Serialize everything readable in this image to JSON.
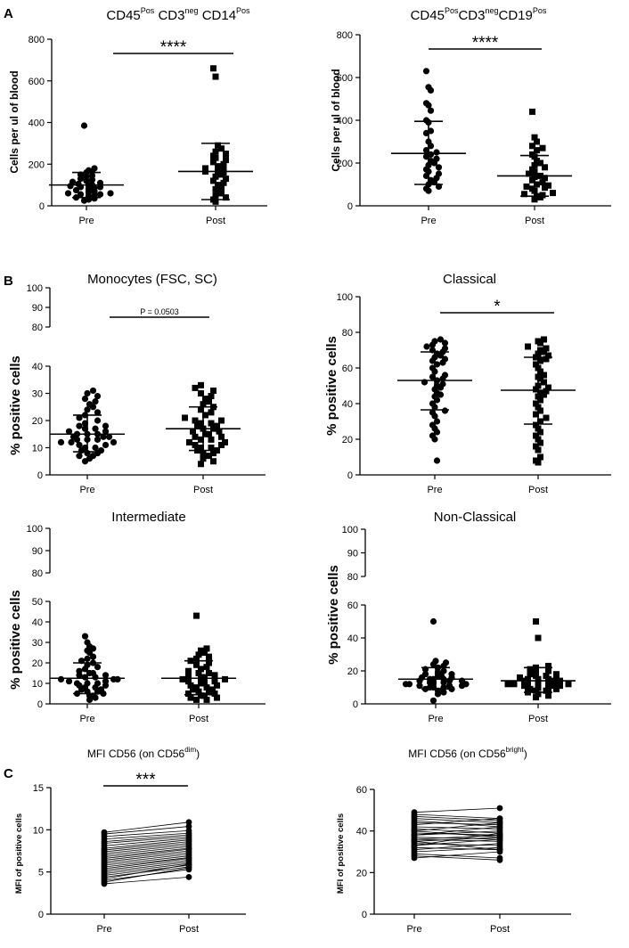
{
  "panel_labels": [
    "A",
    "B",
    "C"
  ],
  "chart_data": [
    {
      "id": "a1",
      "type": "scatter",
      "title_main": "CD45",
      "title_sups": [
        "Pos",
        "neg",
        "Pos"
      ],
      "title_parts": [
        "CD45",
        "CD3",
        "CD14"
      ],
      "ylabel": "Cells per ul of blood",
      "ylim": [
        0,
        800
      ],
      "yticks": [
        0,
        200,
        400,
        600,
        800
      ],
      "categories": [
        "Pre",
        "Post"
      ],
      "significance": "****",
      "series": [
        {
          "name": "Pre",
          "marker": "circle",
          "mean": 100,
          "sd_low": 40,
          "sd_high": 160,
          "values": [
            385,
            180,
            170,
            165,
            160,
            150,
            145,
            140,
            130,
            125,
            120,
            115,
            110,
            105,
            100,
            100,
            95,
            90,
            90,
            85,
            80,
            75,
            70,
            65,
            60,
            60,
            55,
            55,
            50,
            45,
            40,
            35,
            30,
            25
          ]
        },
        {
          "name": "Post",
          "marker": "square",
          "mean": 165,
          "sd_low": 30,
          "sd_high": 300,
          "values": [
            660,
            620,
            290,
            275,
            260,
            250,
            240,
            230,
            220,
            210,
            200,
            190,
            180,
            175,
            170,
            165,
            160,
            155,
            150,
            140,
            130,
            120,
            110,
            100,
            90,
            80,
            70,
            60,
            50,
            40,
            30,
            20
          ]
        }
      ]
    },
    {
      "id": "a2",
      "type": "scatter",
      "title_parts": [
        "CD45",
        "CD3",
        "CD19"
      ],
      "title_sups": [
        "Pos",
        "neg",
        "Pos"
      ],
      "ylabel": "Cells per ul of blood",
      "ylim": [
        0,
        800
      ],
      "yticks": [
        0,
        200,
        400,
        600,
        800
      ],
      "categories": [
        "Pre",
        "Post"
      ],
      "significance": "****",
      "series": [
        {
          "name": "Pre",
          "marker": "circle",
          "mean": 245,
          "sd_low": 100,
          "sd_high": 395,
          "values": [
            630,
            555,
            540,
            480,
            470,
            445,
            400,
            390,
            350,
            340,
            300,
            280,
            260,
            250,
            240,
            230,
            220,
            210,
            200,
            190,
            180,
            170,
            160,
            150,
            140,
            130,
            120,
            110,
            100,
            90,
            80,
            70
          ]
        },
        {
          "name": "Post",
          "marker": "square",
          "mean": 140,
          "sd_low": 45,
          "sd_high": 235,
          "values": [
            440,
            320,
            300,
            280,
            270,
            260,
            240,
            230,
            210,
            200,
            190,
            180,
            170,
            160,
            150,
            140,
            135,
            130,
            120,
            110,
            100,
            95,
            90,
            85,
            80,
            70,
            60,
            55,
            50,
            45,
            40,
            30
          ]
        }
      ]
    },
    {
      "id": "b1",
      "type": "scatter",
      "title": "Monocytes (FSC, SC)",
      "ylabel": "% positive cells",
      "ylim": [
        0,
        100
      ],
      "yticks_low": [
        0,
        10,
        20,
        30,
        40
      ],
      "yticks_high": [
        80,
        90,
        100
      ],
      "categories": [
        "Pre",
        "Post"
      ],
      "significance": "P = 0.0503",
      "series": [
        {
          "name": "Pre",
          "marker": "circle",
          "mean": 15,
          "sd_low": 8.5,
          "sd_high": 22,
          "values": [
            31,
            30,
            29,
            28,
            27,
            26,
            25,
            24,
            23,
            22,
            21,
            20,
            19,
            18,
            18,
            17,
            17,
            16,
            16,
            15,
            15,
            15,
            14,
            14,
            14,
            13,
            13,
            13,
            12,
            12,
            12,
            11,
            11,
            10,
            10,
            9,
            9,
            8,
            8,
            7,
            7,
            6,
            5
          ]
        },
        {
          "name": "Post",
          "marker": "square",
          "mean": 17,
          "sd_low": 9,
          "sd_high": 25,
          "values": [
            33,
            32,
            31,
            30,
            29,
            28,
            27,
            26,
            25,
            24,
            23,
            22,
            21,
            20,
            20,
            19,
            19,
            18,
            18,
            17,
            17,
            16,
            16,
            15,
            15,
            14,
            14,
            13,
            13,
            12,
            12,
            11,
            11,
            10,
            10,
            9,
            9,
            8,
            8,
            7,
            6,
            5,
            4
          ]
        }
      ]
    },
    {
      "id": "b2",
      "type": "scatter",
      "title": "Classical",
      "ylabel": "% positive cells",
      "ylim": [
        0,
        100
      ],
      "yticks": [
        0,
        20,
        40,
        60,
        80,
        100
      ],
      "categories": [
        "Pre",
        "Post"
      ],
      "significance": "*",
      "series": [
        {
          "name": "Pre",
          "marker": "circle",
          "mean": 53,
          "sd_low": 36.5,
          "sd_high": 69,
          "values": [
            76,
            75,
            74,
            73,
            72,
            71,
            70,
            69,
            68,
            67,
            66,
            65,
            64,
            63,
            62,
            60,
            58,
            56,
            55,
            54,
            53,
            52,
            51,
            50,
            49,
            48,
            46,
            45,
            44,
            42,
            40,
            38,
            36,
            35,
            33,
            30,
            28,
            26,
            24,
            22,
            20,
            8
          ]
        },
        {
          "name": "Post",
          "marker": "square",
          "mean": 47.5,
          "sd_low": 28.5,
          "sd_high": 66,
          "values": [
            76,
            75,
            74,
            72,
            71,
            70,
            69,
            68,
            67,
            66,
            65,
            64,
            62,
            60,
            58,
            56,
            55,
            54,
            52,
            50,
            49,
            48,
            47,
            46,
            45,
            44,
            42,
            40,
            38,
            36,
            34,
            32,
            30,
            28,
            26,
            24,
            22,
            20,
            18,
            16,
            14,
            10,
            8,
            7
          ]
        }
      ]
    },
    {
      "id": "b3",
      "type": "scatter",
      "title": "Intermediate",
      "ylabel": "% positive cells",
      "ylim": [
        0,
        100
      ],
      "yticks_low": [
        0,
        10,
        20,
        30,
        40,
        50
      ],
      "yticks_high": [
        80,
        90,
        100
      ],
      "categories": [
        "Pre",
        "Post"
      ],
      "significance": "",
      "series": [
        {
          "name": "Pre",
          "marker": "circle",
          "mean": 12.5,
          "sd_low": 5,
          "sd_high": 20,
          "values": [
            33,
            30,
            28,
            27,
            26,
            25,
            23,
            22,
            21,
            20,
            19,
            18,
            17,
            16,
            15,
            15,
            14,
            14,
            13,
            13,
            12,
            12,
            12,
            11,
            11,
            10,
            10,
            10,
            9,
            9,
            8,
            8,
            7,
            7,
            6,
            6,
            5,
            5,
            4,
            4,
            3,
            2
          ]
        },
        {
          "name": "Post",
          "marker": "square",
          "mean": 12.5,
          "sd_low": 4.5,
          "sd_high": 21,
          "values": [
            43,
            27,
            26,
            25,
            24,
            23,
            22,
            21,
            20,
            19,
            18,
            17,
            16,
            15,
            15,
            14,
            14,
            13,
            13,
            12,
            12,
            11,
            11,
            10,
            10,
            9,
            9,
            8,
            8,
            7,
            7,
            6,
            6,
            5,
            5,
            4,
            4,
            3,
            3,
            2,
            2
          ]
        }
      ]
    },
    {
      "id": "b4",
      "type": "scatter",
      "title": "Non-Classical",
      "ylabel": "% positive cells",
      "ylim": [
        0,
        100
      ],
      "yticks_low": [
        0,
        20,
        40,
        60
      ],
      "yticks_high": [
        80,
        90,
        100
      ],
      "categories": [
        "Pre",
        "Post"
      ],
      "significance": "",
      "series": [
        {
          "name": "Pre",
          "marker": "circle",
          "mean": 15,
          "sd_low": 9,
          "sd_high": 22,
          "values": [
            50,
            26,
            25,
            24,
            23,
            22,
            21,
            20,
            19,
            18,
            18,
            17,
            17,
            16,
            16,
            15,
            15,
            15,
            14,
            14,
            14,
            13,
            13,
            13,
            12,
            12,
            12,
            11,
            11,
            11,
            10,
            10,
            10,
            9,
            9,
            8,
            8,
            7,
            6,
            2
          ]
        },
        {
          "name": "Post",
          "marker": "square",
          "mean": 14,
          "sd_low": 7,
          "sd_high": 22,
          "values": [
            50,
            40,
            23,
            22,
            21,
            20,
            19,
            18,
            18,
            17,
            17,
            16,
            16,
            15,
            15,
            15,
            14,
            14,
            14,
            13,
            13,
            13,
            12,
            12,
            12,
            11,
            11,
            11,
            10,
            10,
            10,
            9,
            9,
            8,
            8,
            7,
            7,
            6,
            5,
            4
          ]
        }
      ]
    },
    {
      "id": "c1",
      "type": "line",
      "title_parts": [
        "MFI CD56 (on CD56",
        ")"
      ],
      "title_sup": "dim",
      "ylabel": "MFI of positive cells",
      "ylim": [
        0,
        15
      ],
      "yticks": [
        0,
        5,
        10,
        15
      ],
      "categories": [
        "Pre",
        "Post"
      ],
      "significance": "***",
      "pairs": [
        [
          9.7,
          10.9
        ],
        [
          9.5,
          10.4
        ],
        [
          9.2,
          9.9
        ],
        [
          8.9,
          9.6
        ],
        [
          8.6,
          9.4
        ],
        [
          8.4,
          9.2
        ],
        [
          8.1,
          9.0
        ],
        [
          7.8,
          8.8
        ],
        [
          7.6,
          8.6
        ],
        [
          7.4,
          8.4
        ],
        [
          7.2,
          8.2
        ],
        [
          7.0,
          8.0
        ],
        [
          6.8,
          7.8
        ],
        [
          6.6,
          7.7
        ],
        [
          6.4,
          7.5
        ],
        [
          6.2,
          7.3
        ],
        [
          6.0,
          7.1
        ],
        [
          5.8,
          6.9
        ],
        [
          5.6,
          6.7
        ],
        [
          5.4,
          6.6
        ],
        [
          5.2,
          6.4
        ],
        [
          5.0,
          6.2
        ],
        [
          4.8,
          6.0
        ],
        [
          4.6,
          5.8
        ],
        [
          4.4,
          5.6
        ],
        [
          4.2,
          5.9
        ],
        [
          4.0,
          5.3
        ],
        [
          3.8,
          5.5
        ],
        [
          3.6,
          4.4
        ]
      ]
    },
    {
      "id": "c2",
      "type": "line",
      "title_parts": [
        "MFI CD56 (on CD56",
        ")"
      ],
      "title_sup": "bright",
      "ylabel": "MFI of positive cells",
      "ylim": [
        0,
        60
      ],
      "yticks": [
        0,
        20,
        40,
        60
      ],
      "categories": [
        "Pre",
        "Post"
      ],
      "significance": "",
      "pairs": [
        [
          49,
          51
        ],
        [
          48,
          46
        ],
        [
          47,
          45
        ],
        [
          46,
          44
        ],
        [
          45,
          42
        ],
        [
          44,
          43
        ],
        [
          43,
          46
        ],
        [
          42,
          41
        ],
        [
          41,
          39
        ],
        [
          40,
          44
        ],
        [
          39,
          38
        ],
        [
          38,
          40
        ],
        [
          37,
          36
        ],
        [
          36,
          35
        ],
        [
          35,
          37
        ],
        [
          34,
          33
        ],
        [
          33,
          36
        ],
        [
          32,
          31
        ],
        [
          31,
          34
        ],
        [
          30,
          32
        ],
        [
          29,
          27
        ],
        [
          28,
          26
        ],
        [
          27,
          30
        ],
        [
          36,
          38
        ],
        [
          40,
          37
        ],
        [
          38,
          42
        ],
        [
          33,
          39
        ],
        [
          35,
          31
        ]
      ]
    }
  ]
}
